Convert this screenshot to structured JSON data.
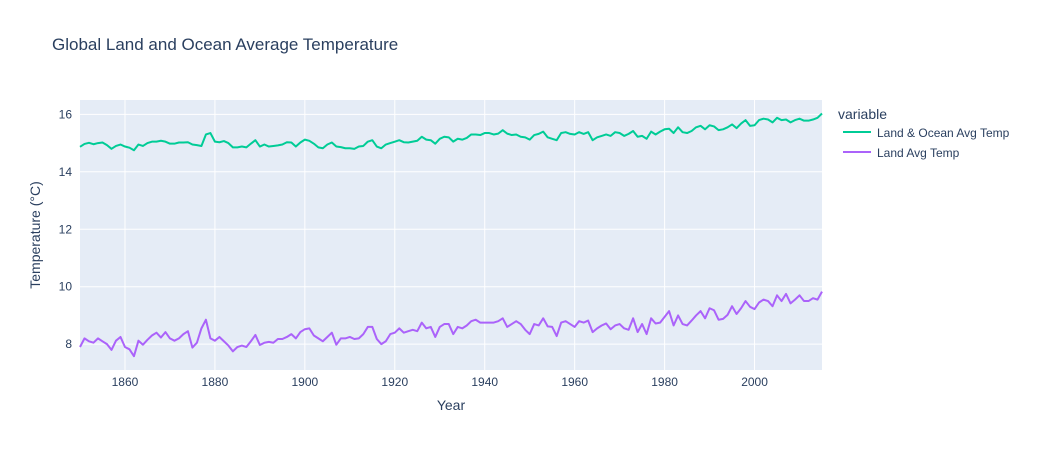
{
  "chart_data": {
    "type": "line",
    "title": "Global Land and Ocean Average Temperature",
    "xlabel": "Year",
    "ylabel": "Temperature (°C)",
    "xlim": [
      1850,
      2015
    ],
    "ylim": [
      7.1,
      16.5
    ],
    "x_ticks": [
      1860,
      1880,
      1900,
      1920,
      1940,
      1960,
      1980,
      2000
    ],
    "y_ticks": [
      8,
      10,
      12,
      14,
      16
    ],
    "grid": true,
    "legend": {
      "title": "variable",
      "position": "right"
    },
    "x": [
      1850,
      1851,
      1852,
      1853,
      1854,
      1855,
      1856,
      1857,
      1858,
      1859,
      1860,
      1861,
      1862,
      1863,
      1864,
      1865,
      1866,
      1867,
      1868,
      1869,
      1870,
      1871,
      1872,
      1873,
      1874,
      1875,
      1876,
      1877,
      1878,
      1879,
      1880,
      1881,
      1882,
      1883,
      1884,
      1885,
      1886,
      1887,
      1888,
      1889,
      1890,
      1891,
      1892,
      1893,
      1894,
      1895,
      1896,
      1897,
      1898,
      1899,
      1900,
      1901,
      1902,
      1903,
      1904,
      1905,
      1906,
      1907,
      1908,
      1909,
      1910,
      1911,
      1912,
      1913,
      1914,
      1915,
      1916,
      1917,
      1918,
      1919,
      1920,
      1921,
      1922,
      1923,
      1924,
      1925,
      1926,
      1927,
      1928,
      1929,
      1930,
      1931,
      1932,
      1933,
      1934,
      1935,
      1936,
      1937,
      1938,
      1939,
      1940,
      1941,
      1942,
      1943,
      1944,
      1945,
      1946,
      1947,
      1948,
      1949,
      1950,
      1951,
      1952,
      1953,
      1954,
      1955,
      1956,
      1957,
      1958,
      1959,
      1960,
      1961,
      1962,
      1963,
      1964,
      1965,
      1966,
      1967,
      1968,
      1969,
      1970,
      1971,
      1972,
      1973,
      1974,
      1975,
      1976,
      1977,
      1978,
      1979,
      1980,
      1981,
      1982,
      1983,
      1984,
      1985,
      1986,
      1987,
      1988,
      1989,
      1990,
      1991,
      1992,
      1993,
      1994,
      1995,
      1996,
      1997,
      1998,
      1999,
      2000,
      2001,
      2002,
      2003,
      2004,
      2005,
      2006,
      2007,
      2008,
      2009,
      2010,
      2011,
      2012,
      2013,
      2014,
      2015
    ],
    "series": [
      {
        "name": "Land & Ocean Avg Temp",
        "color": "#00cc96",
        "values": [
          14.87,
          14.97,
          15.01,
          14.96,
          15.0,
          15.02,
          14.93,
          14.8,
          14.9,
          14.95,
          14.88,
          14.84,
          14.75,
          14.95,
          14.9,
          15.0,
          15.05,
          15.05,
          15.08,
          15.05,
          14.98,
          14.98,
          15.02,
          15.02,
          15.03,
          14.95,
          14.93,
          14.9,
          15.3,
          15.35,
          15.05,
          15.03,
          15.07,
          15.0,
          14.85,
          14.85,
          14.88,
          14.85,
          14.98,
          15.1,
          14.88,
          14.95,
          14.88,
          14.9,
          14.92,
          14.95,
          15.03,
          15.02,
          14.88,
          15.02,
          15.12,
          15.08,
          14.98,
          14.85,
          14.82,
          14.95,
          15.02,
          14.88,
          14.86,
          14.82,
          14.82,
          14.8,
          14.88,
          14.9,
          15.05,
          15.1,
          14.88,
          14.82,
          14.95,
          15.0,
          15.05,
          15.1,
          15.03,
          15.02,
          15.05,
          15.08,
          15.22,
          15.12,
          15.1,
          14.98,
          15.15,
          15.22,
          15.2,
          15.05,
          15.15,
          15.12,
          15.18,
          15.3,
          15.3,
          15.28,
          15.35,
          15.35,
          15.3,
          15.33,
          15.45,
          15.33,
          15.28,
          15.3,
          15.22,
          15.2,
          15.12,
          15.28,
          15.32,
          15.4,
          15.2,
          15.15,
          15.1,
          15.35,
          15.38,
          15.32,
          15.3,
          15.38,
          15.32,
          15.38,
          15.1,
          15.2,
          15.25,
          15.3,
          15.25,
          15.38,
          15.35,
          15.25,
          15.32,
          15.42,
          15.22,
          15.25,
          15.15,
          15.4,
          15.3,
          15.4,
          15.48,
          15.5,
          15.35,
          15.55,
          15.38,
          15.35,
          15.42,
          15.55,
          15.6,
          15.48,
          15.62,
          15.58,
          15.45,
          15.48,
          15.55,
          15.65,
          15.52,
          15.68,
          15.8,
          15.6,
          15.62,
          15.8,
          15.85,
          15.82,
          15.72,
          15.88,
          15.8,
          15.82,
          15.72,
          15.8,
          15.85,
          15.78,
          15.78,
          15.82,
          15.88,
          16.03
        ]
      },
      {
        "name": "Land Avg Temp",
        "color": "#ab63fa",
        "values": [
          7.9,
          8.2,
          8.1,
          8.05,
          8.2,
          8.1,
          8.0,
          7.8,
          8.12,
          8.25,
          7.9,
          7.82,
          7.58,
          8.12,
          7.98,
          8.15,
          8.3,
          8.4,
          8.23,
          8.42,
          8.2,
          8.12,
          8.2,
          8.35,
          8.45,
          7.88,
          8.05,
          8.55,
          8.85,
          8.2,
          8.12,
          8.25,
          8.1,
          7.95,
          7.75,
          7.9,
          7.95,
          7.9,
          8.1,
          8.32,
          7.97,
          8.05,
          8.08,
          8.05,
          8.18,
          8.18,
          8.25,
          8.35,
          8.2,
          8.42,
          8.52,
          8.55,
          8.3,
          8.2,
          8.1,
          8.25,
          8.4,
          7.98,
          8.2,
          8.2,
          8.25,
          8.18,
          8.2,
          8.35,
          8.6,
          8.6,
          8.18,
          8.0,
          8.1,
          8.35,
          8.4,
          8.55,
          8.4,
          8.45,
          8.5,
          8.45,
          8.75,
          8.55,
          8.6,
          8.25,
          8.6,
          8.7,
          8.7,
          8.35,
          8.6,
          8.55,
          8.65,
          8.8,
          8.85,
          8.75,
          8.75,
          8.75,
          8.75,
          8.8,
          8.9,
          8.6,
          8.7,
          8.8,
          8.7,
          8.5,
          8.35,
          8.7,
          8.65,
          8.9,
          8.62,
          8.6,
          8.28,
          8.75,
          8.8,
          8.7,
          8.6,
          8.8,
          8.75,
          8.82,
          8.42,
          8.55,
          8.65,
          8.72,
          8.52,
          8.65,
          8.7,
          8.55,
          8.5,
          8.9,
          8.42,
          8.7,
          8.35,
          8.9,
          8.72,
          8.75,
          8.95,
          9.15,
          8.65,
          9.0,
          8.7,
          8.65,
          8.82,
          9.0,
          9.15,
          8.9,
          9.25,
          9.18,
          8.85,
          8.88,
          9.02,
          9.32,
          9.05,
          9.25,
          9.5,
          9.3,
          9.22,
          9.45,
          9.55,
          9.5,
          9.32,
          9.7,
          9.5,
          9.75,
          9.42,
          9.55,
          9.7,
          9.5,
          9.5,
          9.6,
          9.55,
          9.83
        ]
      }
    ]
  }
}
